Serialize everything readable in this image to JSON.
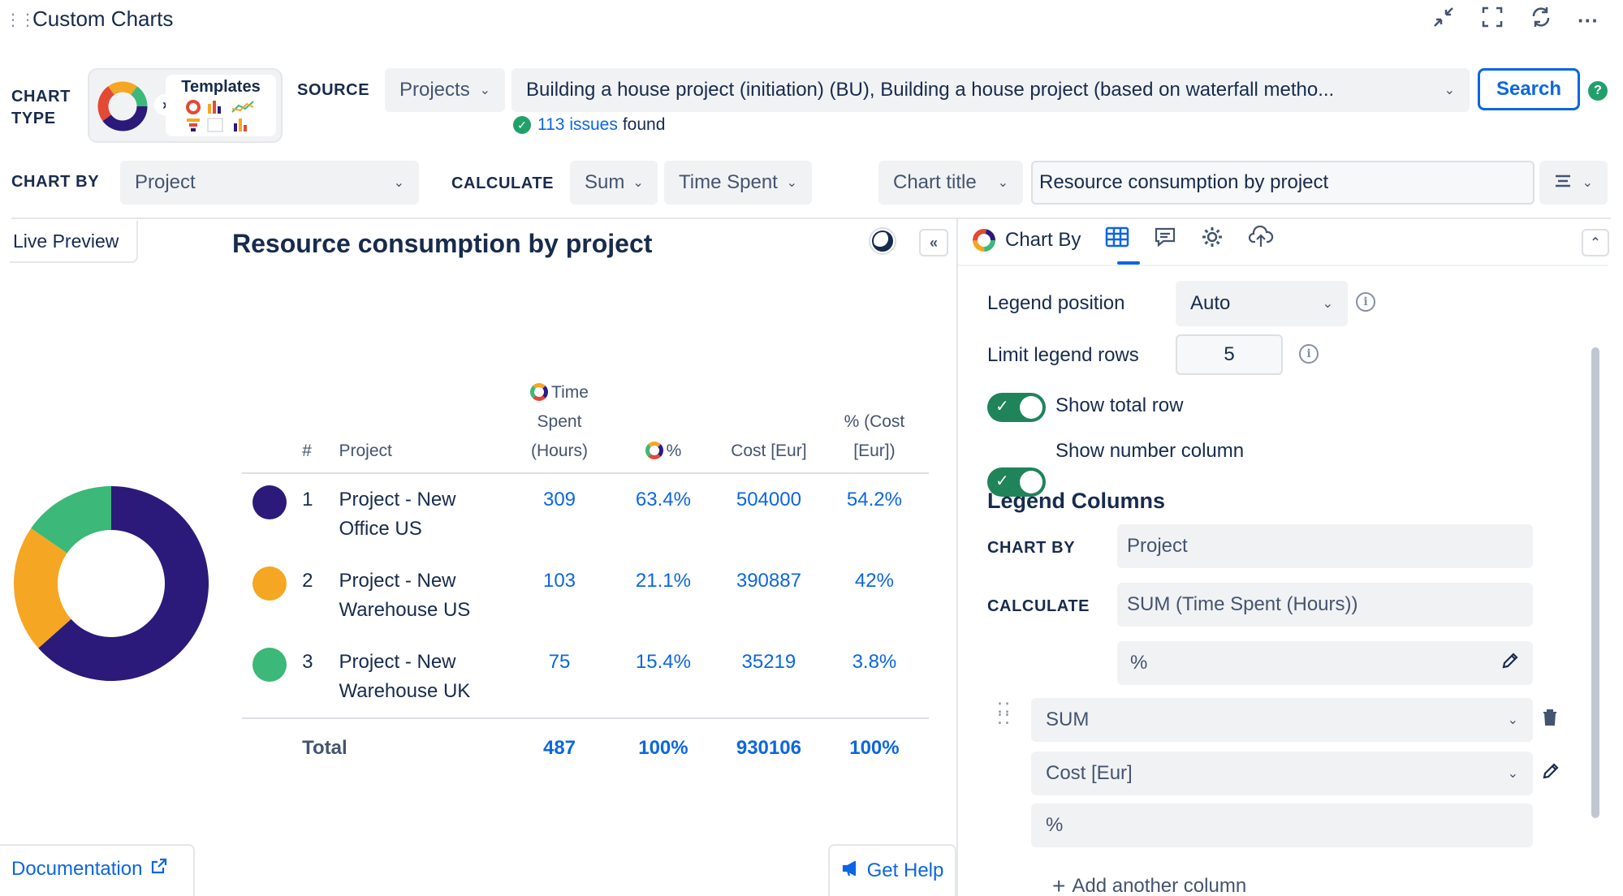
{
  "header": {
    "title": "Custom Charts",
    "icons": [
      "minimize-icon",
      "fullscreen-icon",
      "refresh-icon",
      "more-icon"
    ]
  },
  "chart_type": {
    "label": "CHART TYPE",
    "templates_label": "Templates"
  },
  "source": {
    "label": "SOURCE",
    "type": "Projects",
    "value": "Building a house project (initiation) (BU), Building a house project (based on waterfall metho...",
    "search_label": "Search",
    "issues_count": "113 issues",
    "found_text": "found"
  },
  "toolbar": {
    "chart_by_label": "CHART BY",
    "chart_by_value": "Project",
    "calculate_label": "CALCULATE",
    "calc_func": "Sum",
    "calc_field": "Time Spent",
    "chart_title_select": "Chart title",
    "chart_title_value": "Resource consumption by project"
  },
  "preview": {
    "tab_label": "Live Preview",
    "title": "Resource consumption by project",
    "collapse_label": "«",
    "documentation_label": "Documentation",
    "get_help_label": "Get Help"
  },
  "table": {
    "headers": {
      "num": "#",
      "project": "Project",
      "time_spent": "Time Spent (Hours)",
      "pct": "%",
      "cost": "Cost [Eur]",
      "cost_pct": "% (Cost [Eur])"
    },
    "rows": [
      {
        "num": "1",
        "project": "Project - New Office US",
        "time": "309",
        "pct": "63.4%",
        "cost": "504000",
        "cost_pct": "54.2%",
        "color": "#2c1a7a"
      },
      {
        "num": "2",
        "project": "Project - New Warehouse US",
        "time": "103",
        "pct": "21.1%",
        "cost": "390887",
        "cost_pct": "42%",
        "color": "#f5a623"
      },
      {
        "num": "3",
        "project": "Project - New Warehouse UK",
        "time": "75",
        "pct": "15.4%",
        "cost": "35219",
        "cost_pct": "3.8%",
        "color": "#3cb878"
      }
    ],
    "total": {
      "label": "Total",
      "time": "487",
      "pct": "100%",
      "cost": "930106",
      "cost_pct": "100%"
    }
  },
  "chart_data": {
    "type": "pie",
    "categories": [
      "Project - New Office US",
      "Project - New Warehouse US",
      "Project - New Warehouse UK"
    ],
    "values": [
      309,
      103,
      75
    ],
    "colors": [
      "#2c1a7a",
      "#f5a623",
      "#3cb878"
    ],
    "title": "Resource consumption by project"
  },
  "panel": {
    "chart_by_label": "Chart By",
    "legend_position_label": "Legend position",
    "legend_position_value": "Auto",
    "limit_rows_label": "Limit legend rows",
    "limit_rows_value": "5",
    "show_total_label": "Show total row",
    "show_total_on": true,
    "show_number_label": "Show number column",
    "show_number_on": true,
    "legend_columns_title": "Legend Columns",
    "lc_chart_by_label": "CHART BY",
    "lc_chart_by_value": "Project",
    "lc_calculate_label": "CALCULATE",
    "lc_calculate_value": "SUM (Time Spent (Hours))",
    "lc_pct_value": "%",
    "lc_sum_value": "SUM",
    "lc_cost_value": "Cost [Eur]",
    "lc_pct2_value": "%",
    "add_column_label": "Add another column"
  }
}
